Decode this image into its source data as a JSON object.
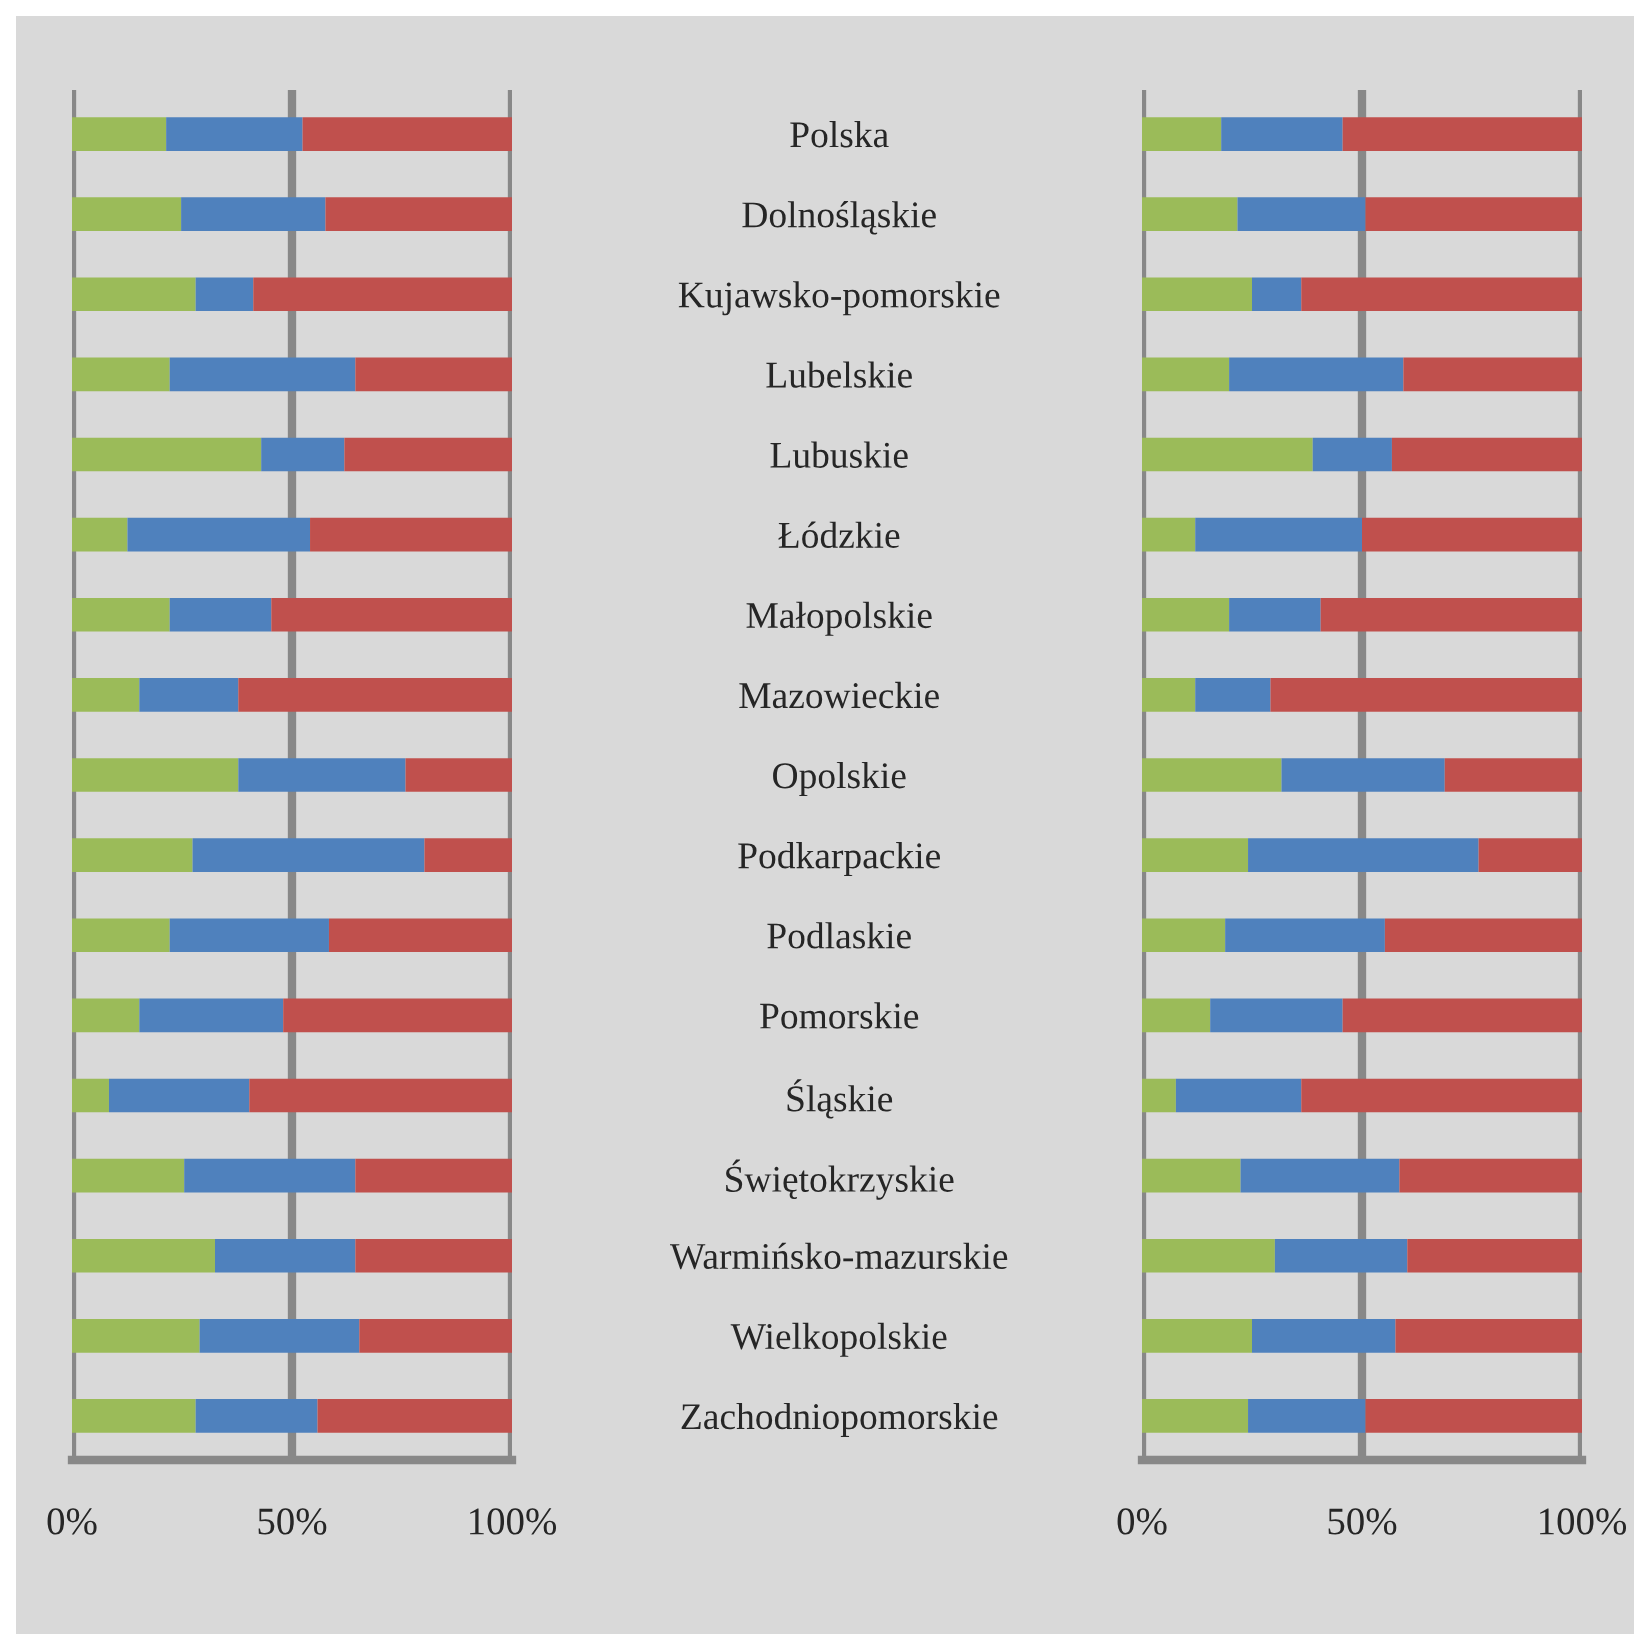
{
  "chart_data": [
    {
      "type": "bar",
      "orientation": "horizontal",
      "stacked": true,
      "tick_labels": "x",
      "grid": "x",
      "legend": false,
      "categories": [
        null,
        null,
        null,
        null,
        null,
        null,
        null,
        null,
        null,
        null,
        null,
        null,
        null,
        null,
        null,
        null,
        null
      ],
      "xlim": [
        0,
        100
      ],
      "xticks": [
        {
          "value": 0,
          "label": "0%"
        },
        {
          "value": 50,
          "label": "50%"
        },
        {
          "value": 100,
          "label": "100%"
        }
      ],
      "series": [
        {
          "color": "#9bbb59",
          "values": [
            21.4,
            24.8,
            28.1,
            22.2,
            43.0,
            12.6,
            22.2,
            15.3,
            37.8,
            27.4,
            22.2,
            15.3,
            8.4,
            25.5,
            32.5,
            29.0,
            28.1
          ]
        },
        {
          "color": "#4f81bd",
          "values": [
            31.0,
            32.8,
            13.1,
            42.2,
            18.9,
            41.5,
            23.1,
            22.5,
            38.0,
            52.7,
            36.2,
            32.7,
            31.9,
            38.9,
            31.9,
            36.3,
            27.7
          ]
        },
        {
          "color": "#c0504d",
          "values": [
            47.6,
            42.4,
            58.8,
            35.6,
            38.1,
            45.9,
            54.7,
            62.2,
            24.2,
            19.9,
            41.6,
            52.0,
            59.7,
            35.6,
            35.6,
            34.7,
            44.2
          ]
        }
      ]
    },
    {
      "type": "bar",
      "orientation": "horizontal",
      "stacked": true,
      "grid": "x",
      "legend": false,
      "categories": [
        "Polska",
        "Dolnośląskie",
        "Kujawsko-pomorskie",
        "Lubelskie",
        "Lubuskie",
        "Łódzkie",
        "Małopolskie",
        "Mazowieckie",
        "Opolskie",
        "Podkarpackie",
        "Podlaskie",
        "Pomorskie",
        "Śląskie",
        "Świętokrzyskie",
        "Warmińsko-mazurskie",
        "Wielkopolskie",
        "Zachodniopomorskie"
      ],
      "xlim": [
        0,
        100
      ],
      "xticks": [
        {
          "value": 0,
          "label": "0%"
        },
        {
          "value": 50,
          "label": "50%"
        },
        {
          "value": 100,
          "label": "100%"
        }
      ],
      "series": [
        {
          "color": "#9bbb59",
          "values": [
            18.0,
            21.7,
            25.0,
            19.8,
            38.8,
            12.1,
            19.8,
            12.1,
            31.7,
            24.1,
            18.9,
            15.5,
            7.7,
            22.4,
            30.2,
            25.0,
            24.1
          ]
        },
        {
          "color": "#4f81bd",
          "values": [
            27.6,
            29.1,
            11.2,
            39.6,
            18.0,
            37.9,
            20.8,
            17.1,
            37.1,
            52.4,
            36.3,
            30.1,
            28.5,
            36.1,
            30.1,
            32.6,
            26.7
          ]
        },
        {
          "color": "#c0504d",
          "values": [
            54.4,
            49.2,
            63.8,
            40.6,
            43.2,
            50.0,
            59.4,
            70.8,
            31.2,
            23.5,
            44.8,
            54.4,
            63.8,
            41.5,
            39.7,
            42.4,
            49.2
          ]
        }
      ]
    }
  ]
}
